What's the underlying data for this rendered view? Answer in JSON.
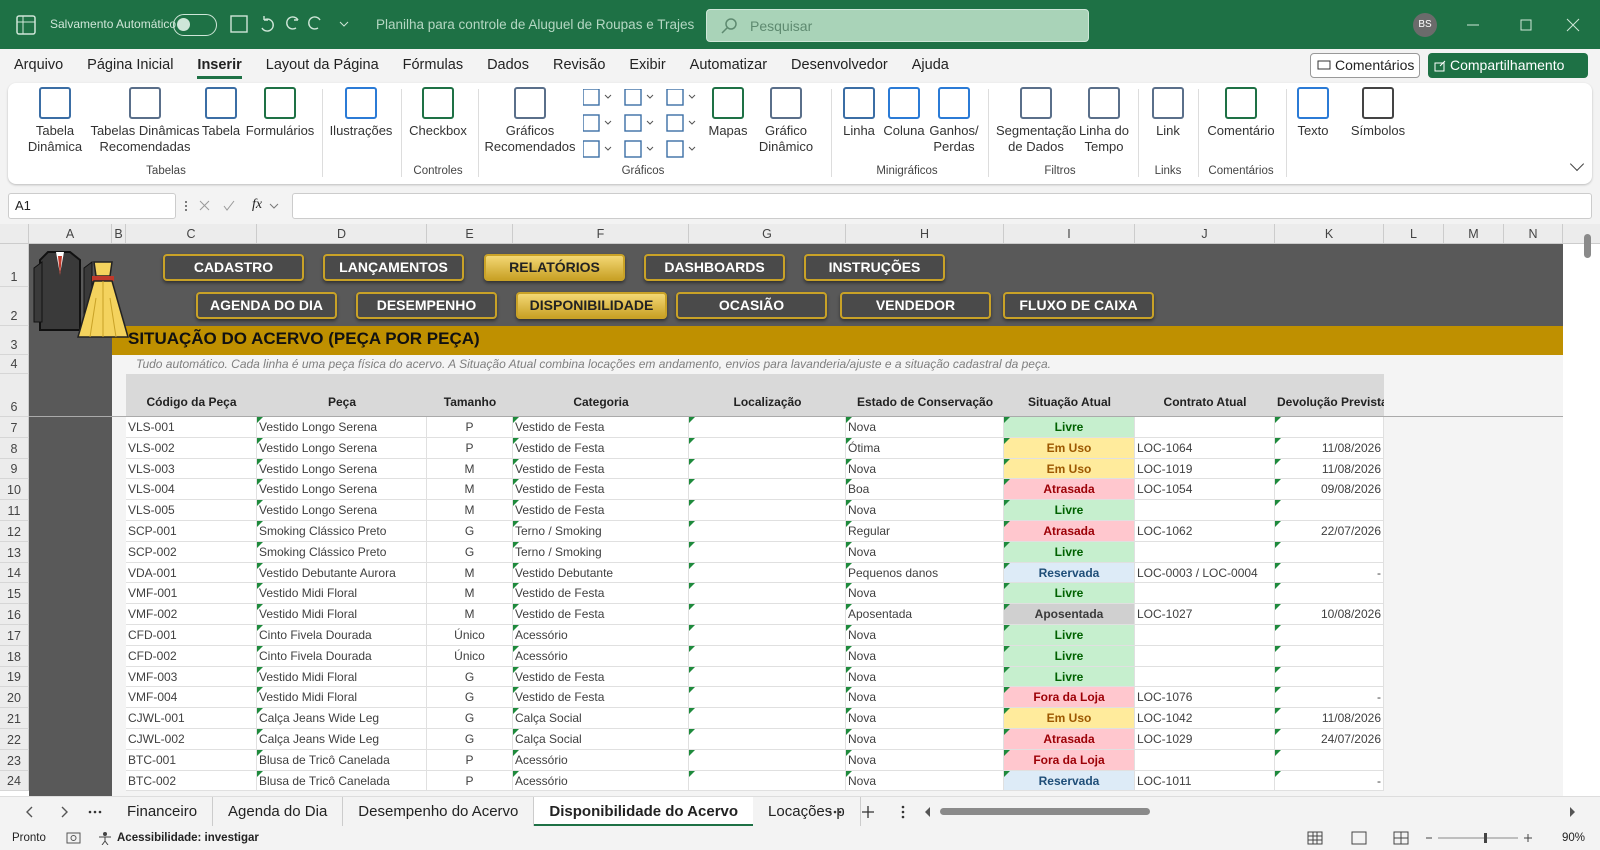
{
  "titlebar": {
    "autosave": "Salvamento Automático",
    "document_title": "Planilha para controle de Aluguel de Roupas e Trajes",
    "search": "Pesquisar",
    "user_initials": "BS"
  },
  "menu": {
    "tabs": [
      "Arquivo",
      "Página Inicial",
      "Inserir",
      "Layout da Página",
      "Fórmulas",
      "Dados",
      "Revisão",
      "Exibir",
      "Automatizar",
      "Desenvolvedor",
      "Ajuda"
    ],
    "active_tab": 2,
    "comments": "Comentários",
    "share": "Compartilhamento"
  },
  "ribbon": {
    "groups": [
      {
        "label": "Tabelas",
        "buttons": [
          "Tabela Dinâmica",
          "Tabelas Dinâmicas Recomendadas",
          "Tabela",
          "Formulários"
        ]
      },
      {
        "buttons": [
          "Ilustrações"
        ]
      },
      {
        "label": "Controles",
        "buttons": [
          "Checkbox"
        ]
      },
      {
        "label": "Gráficos",
        "buttons": [
          "Gráficos Recomendados",
          "Mapas",
          "Gráfico Dinâmico"
        ]
      },
      {
        "label": "Minigráficos",
        "buttons": [
          "Linha",
          "Coluna",
          "Ganhos/ Perdas"
        ]
      },
      {
        "label": "Filtros",
        "buttons": [
          "Segmentação de Dados",
          "Linha do Tempo"
        ]
      },
      {
        "label": "Links",
        "buttons": [
          "Link"
        ]
      },
      {
        "label": "Comentários",
        "buttons": [
          "Comentário"
        ]
      },
      {
        "buttons": [
          "Texto",
          "Símbolos"
        ]
      }
    ]
  },
  "formula_bar": {
    "name_box": "A1",
    "fx": "fx"
  },
  "column_letters": [
    "A",
    "B",
    "C",
    "D",
    "E",
    "F",
    "G",
    "H",
    "I",
    "J",
    "K",
    "L",
    "M",
    "N"
  ],
  "row_numbers": [
    1,
    2,
    3,
    4,
    6,
    7,
    8,
    9,
    10,
    11,
    12,
    13,
    14,
    15,
    16,
    17,
    18,
    19,
    20,
    21,
    22,
    23,
    24
  ],
  "nav": {
    "row1": [
      {
        "label": "CADASTRO",
        "active": false
      },
      {
        "label": "LANÇAMENTOS",
        "active": false
      },
      {
        "label": "RELATÓRIOS",
        "active": true
      },
      {
        "label": "DASHBOARDS",
        "active": false
      },
      {
        "label": "INSTRUÇÕES",
        "active": false
      }
    ],
    "row2": [
      {
        "label": "AGENDA DO DIA",
        "active": false
      },
      {
        "label": "DESEMPENHO",
        "active": false
      },
      {
        "label": "DISPONIBILIDADE",
        "active": true
      },
      {
        "label": "OCASIÃO",
        "active": false
      },
      {
        "label": "VENDEDOR",
        "active": false
      },
      {
        "label": "FLUXO DE CAIXA",
        "active": false
      }
    ]
  },
  "section": {
    "title": "SITUAÇÃO DO ACERVO (PEÇA POR PEÇA)",
    "subtitle": "Tudo automático. Cada linha é uma peça física do acervo. A Situação Atual combina locações em andamento, envios para lavanderia/ajuste e a situação cadastral da peça."
  },
  "table": {
    "headers": [
      "Código da Peça",
      "Peça",
      "Tamanho",
      "Categoria",
      "Localização",
      "Estado de Conservação",
      "Situação Atual",
      "Contrato Atual",
      "Devolução Prevista"
    ],
    "rows": [
      [
        "VLS-001",
        "Vestido Longo Serena",
        "P",
        "Vestido de Festa",
        null,
        "Nova",
        "Livre",
        null,
        null
      ],
      [
        "VLS-002",
        "Vestido Longo Serena",
        "P",
        "Vestido de Festa",
        null,
        "Ótima",
        "Em Uso",
        "LOC-1064",
        "11/08/2026"
      ],
      [
        "VLS-003",
        "Vestido Longo Serena",
        "M",
        "Vestido de Festa",
        null,
        "Nova",
        "Em Uso",
        "LOC-1019",
        "11/08/2026"
      ],
      [
        "VLS-004",
        "Vestido Longo Serena",
        "M",
        "Vestido de Festa",
        null,
        "Boa",
        "Atrasada",
        "LOC-1054",
        "09/08/2026"
      ],
      [
        "VLS-005",
        "Vestido Longo Serena",
        "M",
        "Vestido de Festa",
        null,
        "Nova",
        "Livre",
        null,
        null
      ],
      [
        "SCP-001",
        "Smoking Clássico Preto",
        "G",
        "Terno / Smoking",
        null,
        "Regular",
        "Atrasada",
        "LOC-1062",
        "22/07/2026"
      ],
      [
        "SCP-002",
        "Smoking Clássico Preto",
        "G",
        "Terno / Smoking",
        null,
        "Nova",
        "Livre",
        null,
        null
      ],
      [
        "VDA-001",
        "Vestido Debutante Aurora",
        "M",
        "Vestido Debutante",
        null,
        "Pequenos danos",
        "Reservada",
        "LOC-0003 / LOC-0004",
        "-"
      ],
      [
        "VMF-001",
        "Vestido Midi Floral",
        "M",
        "Vestido de Festa",
        null,
        "Nova",
        "Livre",
        null,
        null
      ],
      [
        "VMF-002",
        "Vestido Midi Floral",
        "M",
        "Vestido de Festa",
        null,
        "Aposentada",
        "Aposentada",
        "LOC-1027",
        "10/08/2026"
      ],
      [
        "CFD-001",
        "Cinto Fivela Dourada",
        "Único",
        "Acessório",
        null,
        "Nova",
        "Livre",
        null,
        null
      ],
      [
        "CFD-002",
        "Cinto Fivela Dourada",
        "Único",
        "Acessório",
        null,
        "Nova",
        "Livre",
        null,
        null
      ],
      [
        "VMF-003",
        "Vestido Midi Floral",
        "G",
        "Vestido de Festa",
        null,
        "Nova",
        "Livre",
        null,
        null
      ],
      [
        "VMF-004",
        "Vestido Midi Floral",
        "G",
        "Vestido de Festa",
        null,
        "Nova",
        "Fora da Loja",
        "LOC-1076",
        "-"
      ],
      [
        "CJWL-001",
        "Calça Jeans Wide Leg",
        "G",
        "Calça Social",
        null,
        "Nova",
        "Em Uso",
        "LOC-1042",
        "11/08/2026"
      ],
      [
        "CJWL-002",
        "Calça Jeans Wide Leg",
        "G",
        "Calça Social",
        null,
        "Nova",
        "Atrasada",
        "LOC-1029",
        "24/07/2026"
      ],
      [
        "BTC-001",
        "Blusa de Tricô Canelada",
        "P",
        "Acessório",
        null,
        "Nova",
        "Fora da Loja",
        null,
        null
      ],
      [
        "BTC-002",
        "Blusa de Tricô Canelada",
        "P",
        "Acessório",
        null,
        "Nova",
        "Reservada",
        "LOC-1011",
        "-"
      ]
    ],
    "situation_colors": [
      [
        "#c6efce",
        "#006100"
      ],
      [
        "#ffeb9c",
        "#9c5700"
      ],
      [
        "#ffeb9c",
        "#9c5700"
      ],
      [
        "#ffc7ce",
        "#9c0006"
      ],
      [
        "#c6efce",
        "#006100"
      ],
      [
        "#ffc7ce",
        "#9c0006"
      ],
      [
        "#c6efce",
        "#006100"
      ],
      [
        "#ddebf7",
        "#1f4e78"
      ],
      [
        "#c6efce",
        "#006100"
      ],
      [
        "#d0d0d0",
        "#3a3a3a"
      ],
      [
        "#c6efce",
        "#006100"
      ],
      [
        "#c6efce",
        "#006100"
      ],
      [
        "#c6efce",
        "#006100"
      ],
      [
        "#ffc7ce",
        "#9c0006"
      ],
      [
        "#ffeb9c",
        "#9c5700"
      ],
      [
        "#ffc7ce",
        "#9c0006"
      ],
      [
        "#ffc7ce",
        "#9c0006"
      ],
      [
        "#ddebf7",
        "#1f4e78"
      ]
    ]
  },
  "sheet_tabs": {
    "tabs": [
      "Financeiro",
      "Agenda do Dia",
      "Desempenho do Acervo",
      "Disponibilidade do Acervo",
      "Locações p"
    ],
    "active_tab": 3
  },
  "status_bar": {
    "ready": "Pronto",
    "accessibility": "Acessibilidade: investigar",
    "zoom": "90%"
  }
}
